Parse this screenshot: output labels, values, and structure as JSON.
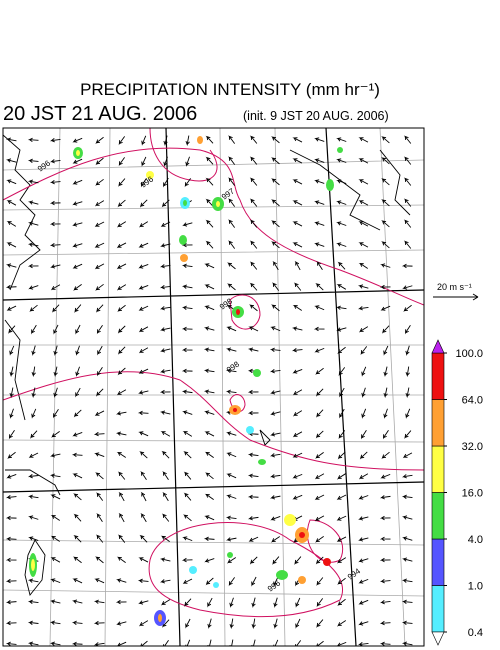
{
  "header": {
    "title": "PRECIPITATION INTENSITY (mm hr⁻¹)",
    "valid_time": "20 JST 21 AUG. 2006",
    "init_time": "(init. 9 JST 20 AUG. 2006)"
  },
  "wind_scale": {
    "label": "20 m s⁻¹"
  },
  "colorbar": {
    "levels": [
      {
        "value": 0.4,
        "label": "0.4"
      },
      {
        "value": 1,
        "label": "1.0"
      },
      {
        "value": 4,
        "label": "4.0"
      },
      {
        "value": 16,
        "label": "16.0"
      },
      {
        "value": 32,
        "label": "32.0"
      },
      {
        "value": 64,
        "label": "64.0"
      },
      {
        "value": 100,
        "label": "100.0"
      }
    ],
    "colors": [
      "#55eeff",
      "#5555ff",
      "#44dd44",
      "#ffff44",
      "#ffa033",
      "#ee1111"
    ],
    "under_color": "#ffffff",
    "over_color": "#bb22ee"
  },
  "contour_labels": [
    "996",
    "996",
    "997",
    "998",
    "998",
    "996",
    "994"
  ]
}
